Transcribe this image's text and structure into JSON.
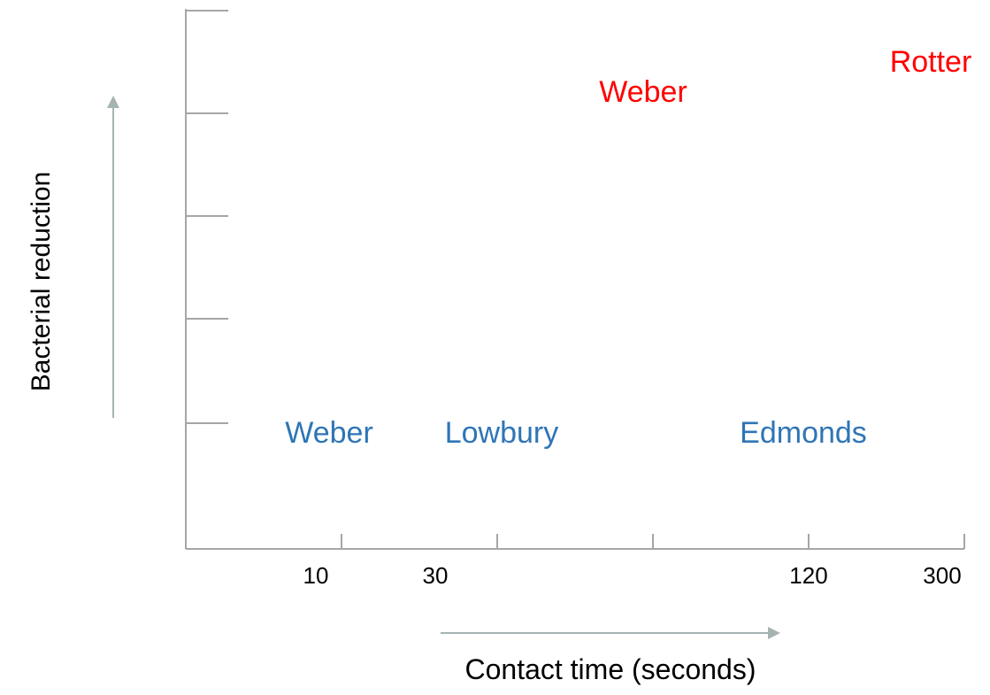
{
  "chart_data": {
    "type": "scatter",
    "title": "",
    "xlabel": "Contact time (seconds)",
    "ylabel": "Bacterial reduction",
    "x_tick_labels": [
      "10",
      "30",
      "120",
      "300"
    ],
    "x_ticks_total": 5,
    "y_ticks_total": 5,
    "grid": false,
    "legend": "none",
    "series": [
      {
        "color": "#2e75b6",
        "points": [
          {
            "label": "Weber",
            "x": "10"
          },
          {
            "label": "Lowbury",
            "x": "30"
          },
          {
            "label": "Edmonds",
            "x": "120"
          }
        ]
      },
      {
        "color": "#ff0000",
        "points": [
          {
            "label": "Weber",
            "x": "60"
          },
          {
            "label": "Rotter",
            "x": "300"
          }
        ]
      }
    ],
    "axis_color": "#a6a6a6",
    "arrow_color": "#a6b3b3"
  }
}
